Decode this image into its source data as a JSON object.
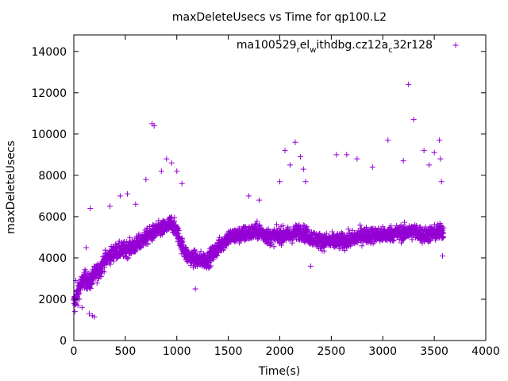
{
  "chart_data": {
    "type": "scatter",
    "title": "maxDeleteUsecs vs Time for qp100.L2",
    "xlabel": "Time(s)",
    "ylabel": "maxDeleteUsecs",
    "xlim": [
      0,
      4000
    ],
    "ylim": [
      0,
      14800
    ],
    "xticks": [
      0,
      500,
      1000,
      1500,
      2000,
      2500,
      3000,
      3500,
      4000
    ],
    "yticks": [
      0,
      2000,
      4000,
      6000,
      8000,
      10000,
      12000,
      14000
    ],
    "grid": false,
    "legend_position": "top-right",
    "series": [
      {
        "name_parts": [
          "ma100529",
          "r",
          "el",
          "w",
          "ithdbg.cz12a",
          "c",
          "32r128"
        ],
        "color": "#9400d3",
        "marker": "plus",
        "trend": [
          [
            0,
            1800
          ],
          [
            50,
            2500
          ],
          [
            100,
            3000
          ],
          [
            150,
            2800
          ],
          [
            200,
            3200
          ],
          [
            250,
            3400
          ],
          [
            300,
            3900
          ],
          [
            400,
            4300
          ],
          [
            500,
            4400
          ],
          [
            600,
            4600
          ],
          [
            700,
            5000
          ],
          [
            800,
            5300
          ],
          [
            900,
            5500
          ],
          [
            950,
            5700
          ],
          [
            1000,
            5300
          ],
          [
            1050,
            4600
          ],
          [
            1100,
            4100
          ],
          [
            1200,
            3900
          ],
          [
            1300,
            3900
          ],
          [
            1400,
            4500
          ],
          [
            1500,
            5000
          ],
          [
            1600,
            5100
          ],
          [
            1700,
            5200
          ],
          [
            1800,
            5300
          ],
          [
            1900,
            5000
          ],
          [
            2000,
            5100
          ],
          [
            2100,
            5100
          ],
          [
            2200,
            5300
          ],
          [
            2300,
            5000
          ],
          [
            2400,
            4800
          ],
          [
            2500,
            4800
          ],
          [
            2600,
            4800
          ],
          [
            2700,
            4900
          ],
          [
            2800,
            5100
          ],
          [
            2900,
            5100
          ],
          [
            3000,
            5100
          ],
          [
            3100,
            5200
          ],
          [
            3200,
            5200
          ],
          [
            3300,
            5300
          ],
          [
            3400,
            5100
          ],
          [
            3500,
            5200
          ],
          [
            3590,
            5300
          ]
        ],
        "notable_points": [
          [
            10,
            1400
          ],
          [
            20,
            2900
          ],
          [
            40,
            1700
          ],
          [
            80,
            1600
          ],
          [
            120,
            4500
          ],
          [
            150,
            1300
          ],
          [
            180,
            1200
          ],
          [
            200,
            1150
          ],
          [
            160,
            6400
          ],
          [
            350,
            6500
          ],
          [
            450,
            7000
          ],
          [
            520,
            7100
          ],
          [
            600,
            6600
          ],
          [
            700,
            7800
          ],
          [
            760,
            10500
          ],
          [
            780,
            10400
          ],
          [
            850,
            8200
          ],
          [
            900,
            8800
          ],
          [
            950,
            8600
          ],
          [
            1000,
            8200
          ],
          [
            1050,
            7600
          ],
          [
            1180,
            2500
          ],
          [
            1700,
            7000
          ],
          [
            1800,
            6800
          ],
          [
            2000,
            7700
          ],
          [
            2050,
            9200
          ],
          [
            2100,
            8500
          ],
          [
            2150,
            9600
          ],
          [
            2200,
            8900
          ],
          [
            2230,
            8300
          ],
          [
            2250,
            7700
          ],
          [
            2300,
            3600
          ],
          [
            2550,
            9000
          ],
          [
            2650,
            9000
          ],
          [
            2750,
            8800
          ],
          [
            2900,
            8400
          ],
          [
            3050,
            9700
          ],
          [
            3200,
            8700
          ],
          [
            3250,
            12400
          ],
          [
            3300,
            10700
          ],
          [
            3400,
            9200
          ],
          [
            3450,
            8500
          ],
          [
            3500,
            9100
          ],
          [
            3550,
            9700
          ],
          [
            3560,
            8800
          ],
          [
            3570,
            7700
          ],
          [
            3580,
            4100
          ]
        ]
      }
    ]
  }
}
